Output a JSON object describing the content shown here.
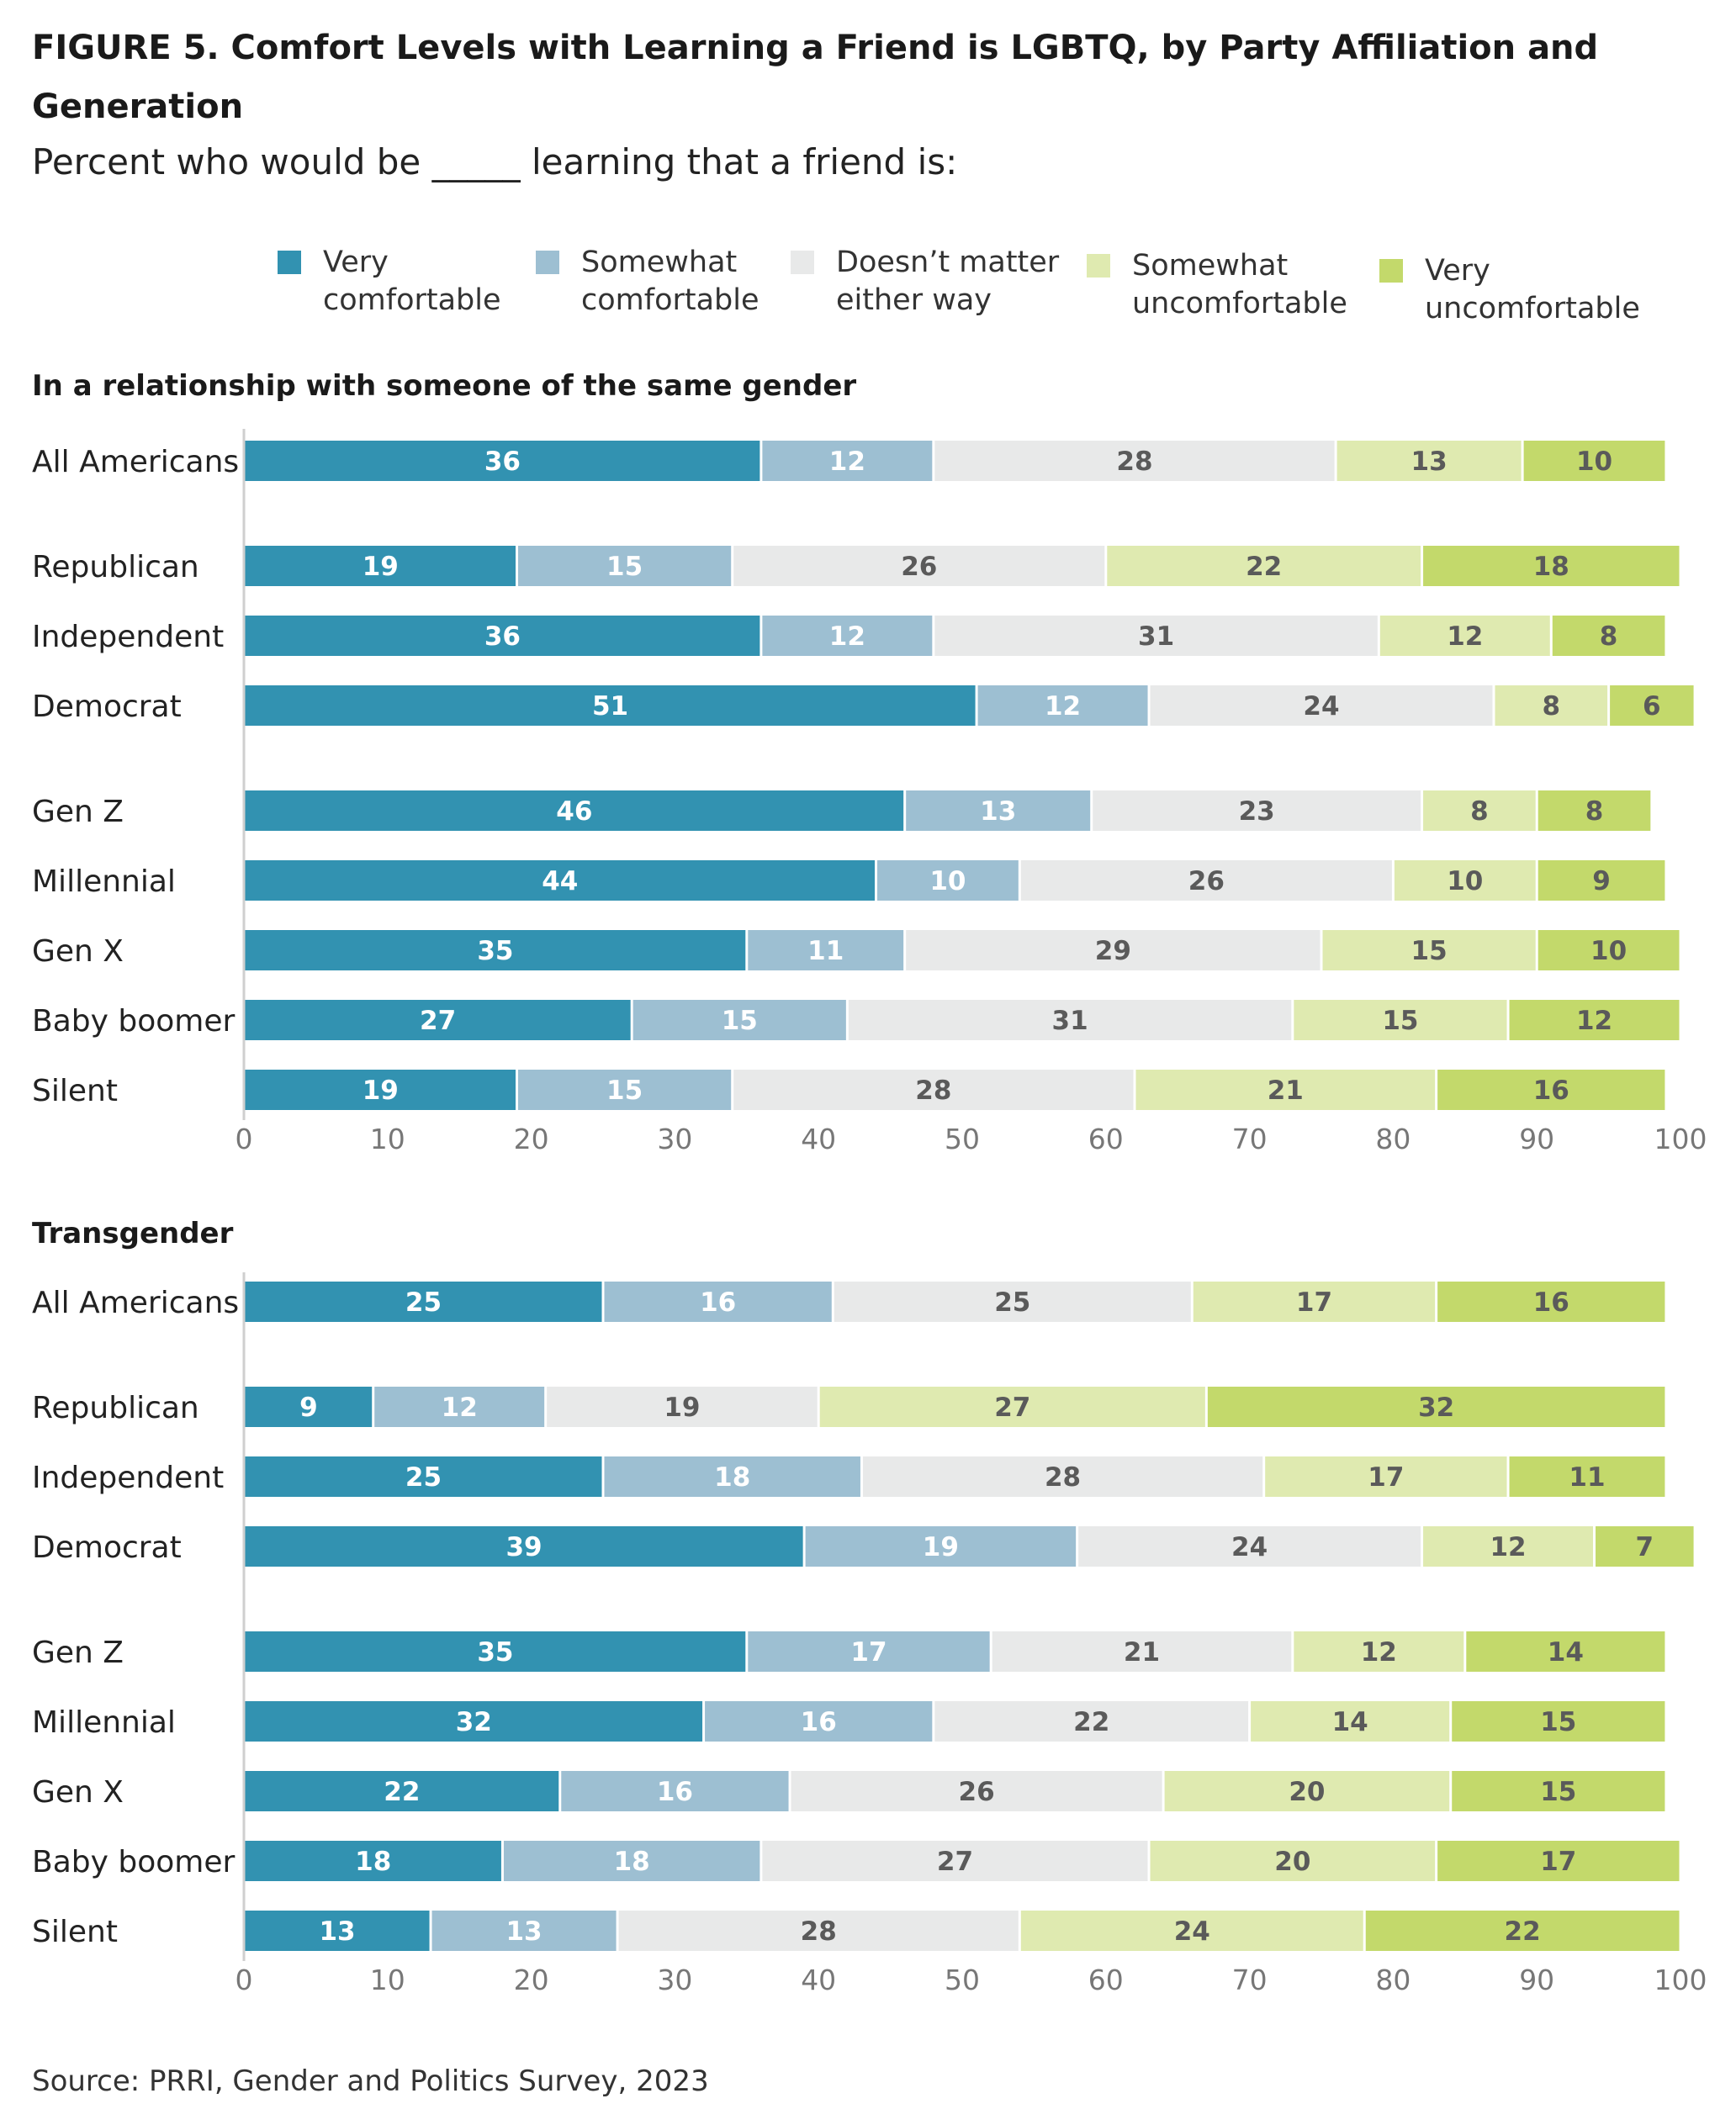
{
  "title": "FIGURE 5.  Comfort Levels with Learning a Friend is LGBTQ, by Party Affiliation and Generation",
  "subtitle": "Percent who would be _____ learning that a friend is:",
  "source": "Source: PRRI, Gender and Politics Survey, 2023",
  "colors": {
    "very_comfortable": "#3292b1",
    "somewhat_comfortable": "#9dbfd2",
    "doesnt_matter": "#e8e9e9",
    "somewhat_uncomfortable": "#dfeab0",
    "very_uncomfortable": "#c3d96b",
    "label_light": "#ffffff",
    "label_dark": "#5a5a5a",
    "axis_tick": "#777777"
  },
  "chart_data": {
    "type": "bar",
    "orientation": "horizontal",
    "stacked": true,
    "legend_position": "top",
    "series": [
      {
        "name": "Very\ncomfortable",
        "color": "#3292b1"
      },
      {
        "name": "Somewhat\ncomfortable",
        "color": "#9dbfd2"
      },
      {
        "name": "Doesn’t matter\neither way",
        "color": "#e8e9e9"
      },
      {
        "name": "Somewhat\nuncomfortable",
        "color": "#dfeab0"
      },
      {
        "name": "Very\nuncomfortable",
        "color": "#c3d96b"
      }
    ],
    "xlim": [
      0,
      100
    ],
    "xticks": [
      0,
      10,
      20,
      30,
      40,
      50,
      60,
      70,
      80,
      90,
      100
    ],
    "panels": [
      {
        "title": "In a relationship with someone of the same gender",
        "rows": [
          {
            "category": "All Americans",
            "values": [
              36,
              12,
              28,
              13,
              10
            ]
          },
          {
            "category": "Republican",
            "values": [
              19,
              15,
              26,
              22,
              18
            ]
          },
          {
            "category": "Independent",
            "values": [
              36,
              12,
              31,
              12,
              8
            ]
          },
          {
            "category": "Democrat",
            "values": [
              51,
              12,
              24,
              8,
              6
            ]
          },
          {
            "category": "Gen Z",
            "values": [
              46,
              13,
              23,
              8,
              8
            ]
          },
          {
            "category": "Millennial",
            "values": [
              44,
              10,
              26,
              10,
              9
            ]
          },
          {
            "category": "Gen X",
            "values": [
              35,
              11,
              29,
              15,
              10
            ]
          },
          {
            "category": "Baby boomer",
            "values": [
              27,
              15,
              31,
              15,
              12
            ]
          },
          {
            "category": "Silent",
            "values": [
              19,
              15,
              28,
              21,
              16
            ]
          }
        ]
      },
      {
        "title": "Transgender",
        "rows": [
          {
            "category": "All Americans",
            "values": [
              25,
              16,
              25,
              17,
              16
            ]
          },
          {
            "category": "Republican",
            "values": [
              9,
              12,
              19,
              27,
              32
            ]
          },
          {
            "category": "Independent",
            "values": [
              25,
              18,
              28,
              17,
              11
            ]
          },
          {
            "category": "Democrat",
            "values": [
              39,
              19,
              24,
              12,
              7
            ]
          },
          {
            "category": "Gen Z",
            "values": [
              35,
              17,
              21,
              12,
              14
            ]
          },
          {
            "category": "Millennial",
            "values": [
              32,
              16,
              22,
              14,
              15
            ]
          },
          {
            "category": "Gen X",
            "values": [
              22,
              16,
              26,
              20,
              15
            ]
          },
          {
            "category": "Baby boomer",
            "values": [
              18,
              18,
              27,
              20,
              17
            ]
          },
          {
            "category": "Silent",
            "values": [
              13,
              13,
              28,
              24,
              22
            ]
          }
        ]
      }
    ]
  }
}
